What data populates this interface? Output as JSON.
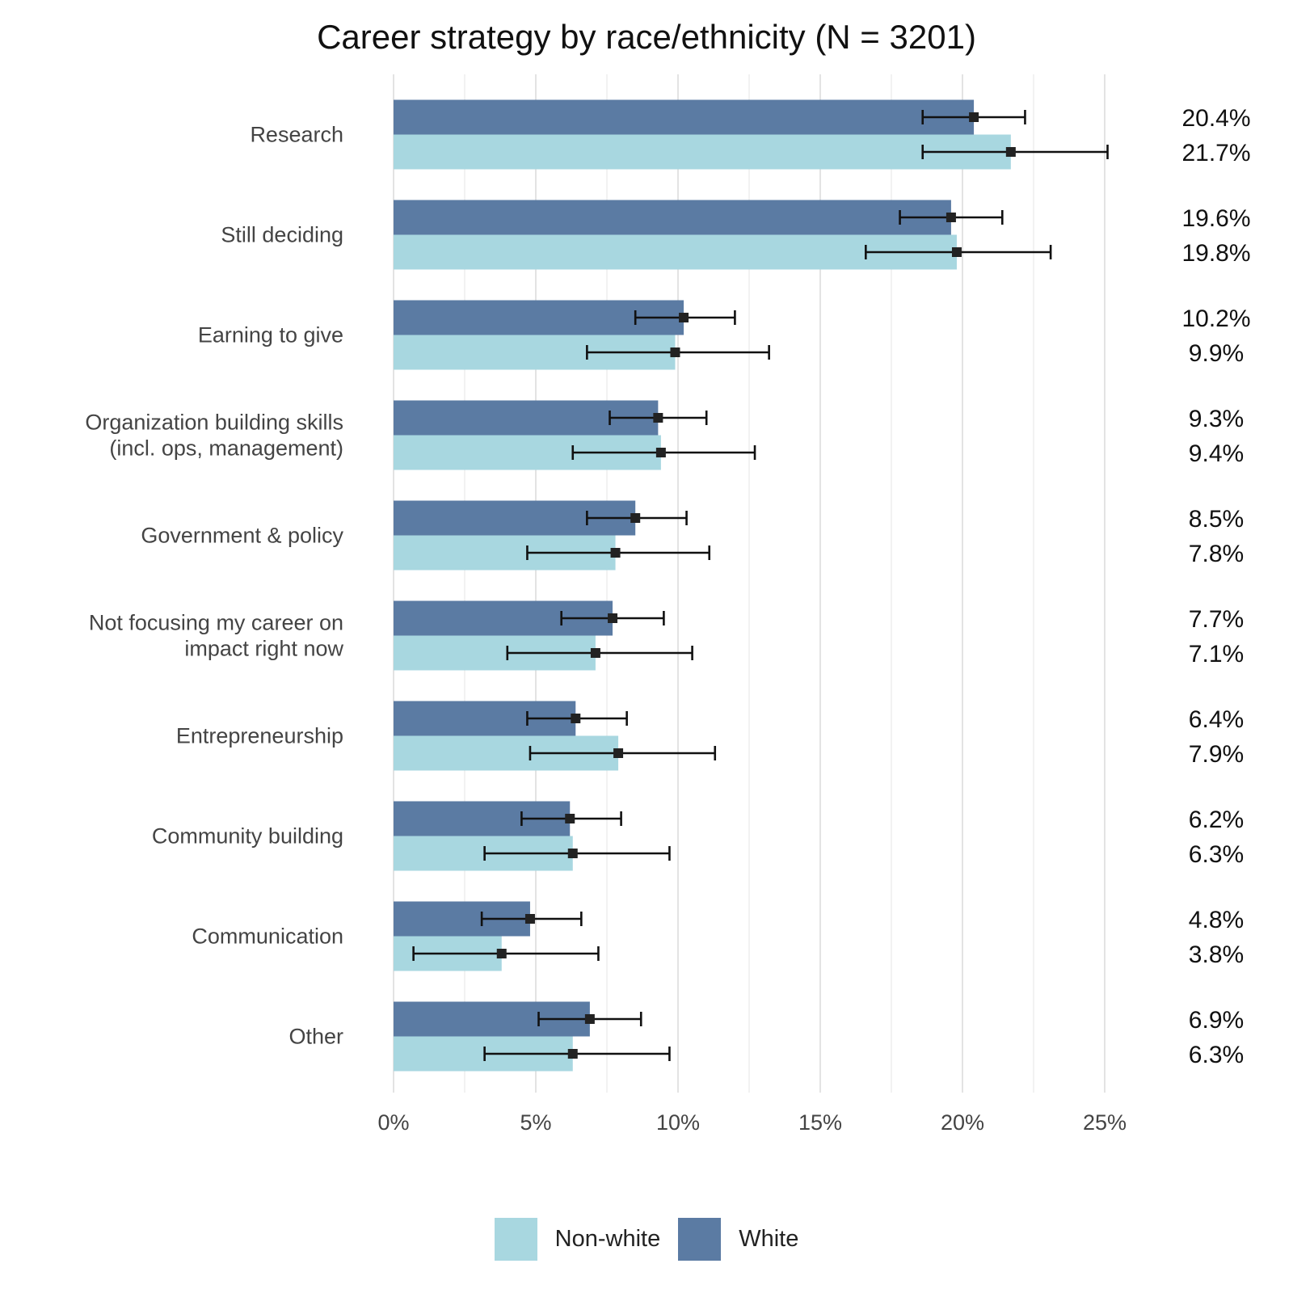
{
  "chart_data": {
    "type": "bar",
    "orientation": "horizontal",
    "title": "Career strategy by race/ethnicity (N = 3201)",
    "xlabel": "",
    "ylabel": "",
    "xlim": [
      0,
      25
    ],
    "x_ticks": [
      "0%",
      "5%",
      "10%",
      "15%",
      "20%",
      "25%"
    ],
    "grid": true,
    "legend_position": "bottom",
    "categories": [
      "Research",
      "Still deciding",
      "Earning to give",
      "Organization building skills\n(incl. ops, management)",
      "Government & policy",
      "Not focusing my career on\nimpact right now",
      "Entrepreneurship",
      "Community building",
      "Communication",
      "Other"
    ],
    "series": [
      {
        "name": "White",
        "color": "#5b7ba3",
        "values": [
          20.4,
          19.6,
          10.2,
          9.3,
          8.5,
          7.7,
          6.4,
          6.2,
          4.8,
          6.9
        ],
        "error_low": [
          18.6,
          17.8,
          8.5,
          7.6,
          6.8,
          5.9,
          4.7,
          4.5,
          3.1,
          5.1
        ],
        "error_high": [
          22.2,
          21.4,
          12.0,
          11.0,
          10.3,
          9.5,
          8.2,
          8.0,
          6.6,
          8.7
        ],
        "labels": [
          "20.4%",
          "19.6%",
          "10.2%",
          "9.3%",
          "8.5%",
          "7.7%",
          "6.4%",
          "6.2%",
          "4.8%",
          "6.9%"
        ]
      },
      {
        "name": "Non-white",
        "color": "#a8d7e0",
        "values": [
          21.7,
          19.8,
          9.9,
          9.4,
          7.8,
          7.1,
          7.9,
          6.3,
          3.8,
          6.3
        ],
        "error_low": [
          18.6,
          16.6,
          6.8,
          6.3,
          4.7,
          4.0,
          4.8,
          3.2,
          0.7,
          3.2
        ],
        "error_high": [
          25.1,
          23.1,
          13.2,
          12.7,
          11.1,
          10.5,
          11.3,
          9.7,
          7.2,
          9.7
        ],
        "labels": [
          "21.7%",
          "19.8%",
          "9.9%",
          "9.4%",
          "7.8%",
          "7.1%",
          "7.9%",
          "6.3%",
          "3.8%",
          "6.3%"
        ]
      }
    ],
    "legend": [
      "Non-white",
      "White"
    ]
  }
}
